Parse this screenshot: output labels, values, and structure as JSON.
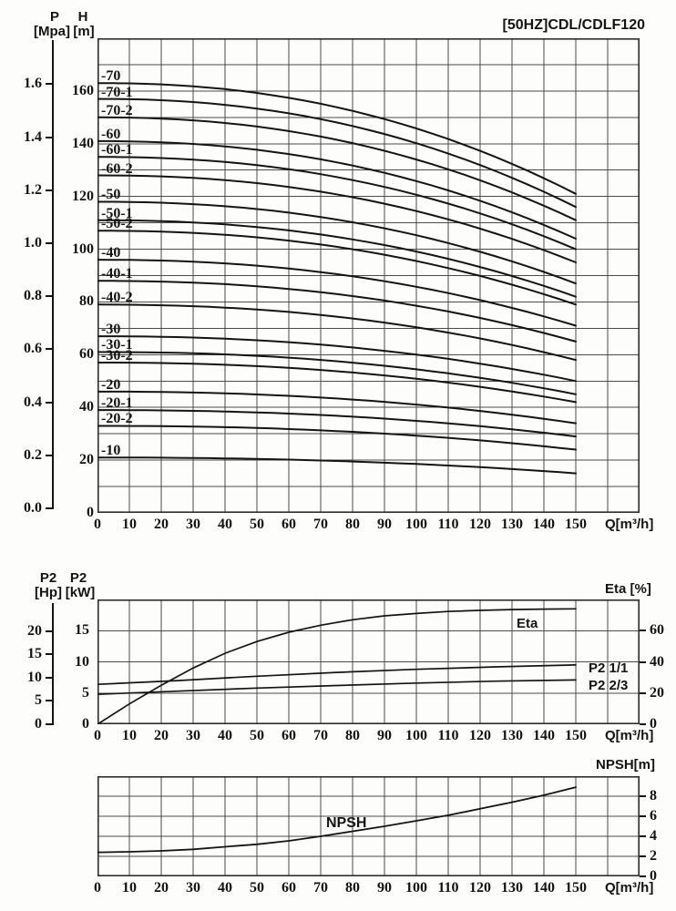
{
  "headers": {
    "title": "[50HZ]CDL/CDLF120",
    "p": "P",
    "p_unit": "[Mpa]",
    "h": "H",
    "h_unit": "[m]",
    "p2_hp": "P2",
    "p2_hp_unit": "[Hp]",
    "p2_kw": "P2",
    "p2_kw_unit": "[kW]",
    "eta_axis": "Eta [%]",
    "npsh_axis": "NPSH[m]",
    "q_label": "Q[m³/h]"
  },
  "chart_data": [
    {
      "id": "head-capacity",
      "type": "line",
      "title": "[50HZ]CDL/CDLF120",
      "xlabel": "Q[m³/h]",
      "x_ticks": [
        0,
        10,
        20,
        30,
        40,
        50,
        60,
        70,
        80,
        90,
        100,
        110,
        120,
        130,
        140,
        150
      ],
      "x_grid_range": [
        0,
        170
      ],
      "grid": true,
      "h_axis": {
        "name": "H",
        "unit": "m",
        "ticks": [
          160,
          140,
          120,
          100,
          80,
          60,
          40,
          20,
          0
        ],
        "grid_range": [
          0,
          180
        ],
        "grid_step": 10
      },
      "p_axis": {
        "name": "P",
        "unit": "Mpa",
        "ticks": [
          1.6,
          1.4,
          1.2,
          1.0,
          0.8,
          0.6,
          0.4,
          0.2,
          0.0
        ]
      },
      "curves": [
        {
          "label": "-70",
          "shutoff_head_m": 163,
          "head_at_q150_m": 121
        },
        {
          "label": "-70-1",
          "shutoff_head_m": 157,
          "head_at_q150_m": 116
        },
        {
          "label": "-70-2",
          "shutoff_head_m": 150,
          "head_at_q150_m": 111
        },
        {
          "label": "-60",
          "shutoff_head_m": 141,
          "head_at_q150_m": 104
        },
        {
          "label": "-60-1",
          "shutoff_head_m": 135,
          "head_at_q150_m": 100
        },
        {
          "label": "-60-2",
          "shutoff_head_m": 128,
          "head_at_q150_m": 95
        },
        {
          "label": "-50",
          "shutoff_head_m": 118,
          "head_at_q150_m": 87
        },
        {
          "label": "-50-1",
          "shutoff_head_m": 111,
          "head_at_q150_m": 82
        },
        {
          "label": "-50-2",
          "shutoff_head_m": 107,
          "head_at_q150_m": 79
        },
        {
          "label": "-40",
          "shutoff_head_m": 96,
          "head_at_q150_m": 71
        },
        {
          "label": "-40-1",
          "shutoff_head_m": 88,
          "head_at_q150_m": 65
        },
        {
          "label": "-40-2",
          "shutoff_head_m": 79,
          "head_at_q150_m": 58
        },
        {
          "label": "-30",
          "shutoff_head_m": 67,
          "head_at_q150_m": 50
        },
        {
          "label": "-30-1",
          "shutoff_head_m": 61,
          "head_at_q150_m": 45
        },
        {
          "label": "-30-2",
          "shutoff_head_m": 57,
          "head_at_q150_m": 42
        },
        {
          "label": "-20",
          "shutoff_head_m": 46,
          "head_at_q150_m": 34
        },
        {
          "label": "-20-1",
          "shutoff_head_m": 39,
          "head_at_q150_m": 29
        },
        {
          "label": "-20-2",
          "shutoff_head_m": 33,
          "head_at_q150_m": 24
        },
        {
          "label": "-10",
          "shutoff_head_m": 21,
          "head_at_q150_m": 15
        }
      ]
    },
    {
      "id": "power-efficiency",
      "type": "line",
      "xlabel": "Q[m³/h]",
      "x_ticks": [
        0,
        10,
        20,
        30,
        40,
        50,
        60,
        70,
        80,
        90,
        100,
        110,
        120,
        130,
        140,
        150
      ],
      "x_grid_range": [
        0,
        170
      ],
      "grid": true,
      "kw_axis": {
        "name": "P2",
        "unit": "kW",
        "ticks": [
          15,
          10,
          5,
          0
        ],
        "grid_range": [
          0,
          20
        ],
        "grid_step": 5
      },
      "hp_axis": {
        "name": "P2",
        "unit": "Hp",
        "ticks": [
          20,
          15,
          10,
          5,
          0
        ],
        "range": [
          0,
          20
        ]
      },
      "eta_axis": {
        "name": "Eta",
        "unit": "%",
        "ticks": [
          60,
          40,
          20,
          0
        ],
        "grid_range": [
          0,
          80
        ]
      },
      "series": [
        {
          "name": "Eta",
          "axis": "eta",
          "x": [
            0,
            10,
            20,
            30,
            40,
            50,
            60,
            70,
            80,
            90,
            100,
            110,
            120,
            130,
            140,
            150
          ],
          "y": [
            0,
            13,
            25,
            36,
            45.5,
            53,
            59,
            63.5,
            67,
            69.5,
            71,
            72.3,
            73,
            73.5,
            73.8,
            74
          ]
        },
        {
          "name": "P2 1/1",
          "axis": "kw",
          "x": [
            0,
            25,
            50,
            75,
            100,
            125,
            150
          ],
          "y": [
            6.4,
            7.0,
            7.7,
            8.3,
            8.8,
            9.2,
            9.5
          ]
        },
        {
          "name": "P2 2/3",
          "axis": "kw",
          "x": [
            0,
            25,
            50,
            75,
            100,
            125,
            150
          ],
          "y": [
            4.8,
            5.3,
            5.8,
            6.2,
            6.6,
            6.9,
            7.1
          ]
        }
      ]
    },
    {
      "id": "npsh",
      "type": "line",
      "xlabel": "Q[m³/h]",
      "x_ticks": [
        0,
        10,
        20,
        30,
        40,
        50,
        60,
        70,
        80,
        90,
        100,
        110,
        120,
        130,
        140,
        150
      ],
      "x_grid_range": [
        0,
        170
      ],
      "grid": true,
      "npsh_axis": {
        "name": "NPSH",
        "unit": "m",
        "ticks": [
          8,
          6,
          4,
          2,
          0
        ],
        "grid_range": [
          0,
          10
        ],
        "grid_step": 2
      },
      "series": [
        {
          "name": "NPSH",
          "x": [
            0,
            10,
            20,
            30,
            40,
            50,
            60,
            70,
            80,
            90,
            100,
            110,
            120,
            130,
            140,
            150
          ],
          "y": [
            2.4,
            2.45,
            2.55,
            2.7,
            2.95,
            3.2,
            3.55,
            4.0,
            4.5,
            5.0,
            5.55,
            6.1,
            6.75,
            7.4,
            8.1,
            8.9
          ]
        }
      ]
    }
  ],
  "colors": {
    "ink": "#141414",
    "grid": "#4c4c4c",
    "border": "#2e2e2e",
    "paper": "#fdfdfc"
  }
}
